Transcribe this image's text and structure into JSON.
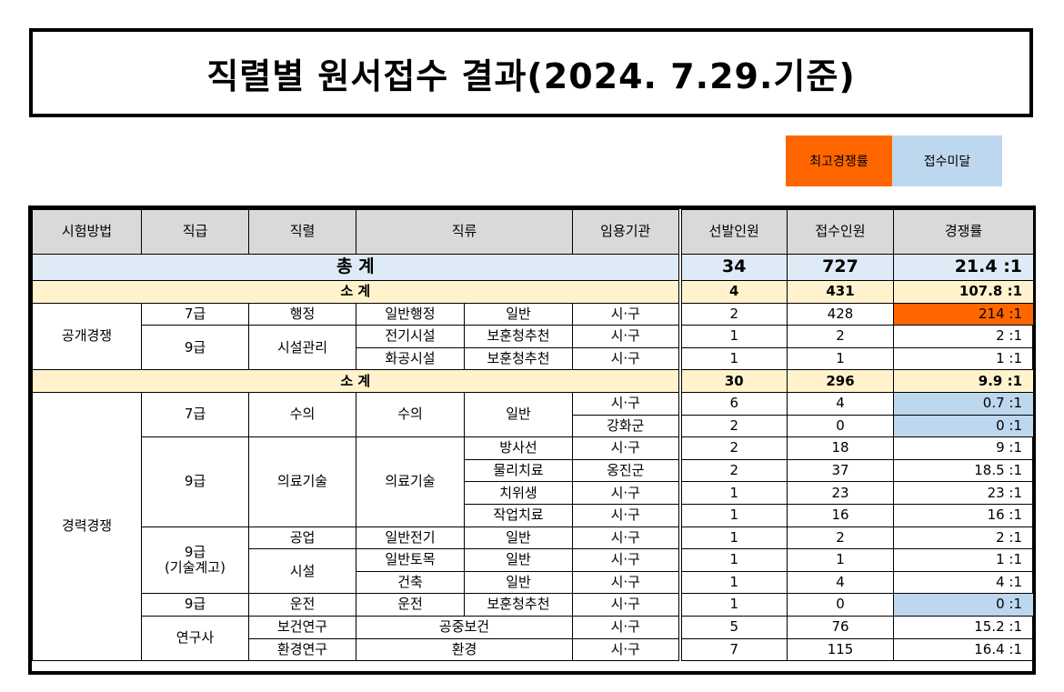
{
  "title": "직렬별 원서접수 결과(2024. 7.29.기준)",
  "legend": {
    "highest": "최고경쟁률",
    "under": "접수미달"
  },
  "colors": {
    "highest": "#ff6600",
    "under": "#bdd7ee",
    "header": "#d9d9d9",
    "total": "#deebf7",
    "subtotal": "#fff2cc"
  },
  "headers": [
    "시험방법",
    "직급",
    "직렬",
    "직류",
    "임용기관",
    "선발인원",
    "접수인원",
    "경쟁률"
  ],
  "total": {
    "label": "총 계",
    "selected": "34",
    "applied": "727",
    "ratio": "21.4 :1"
  },
  "open": {
    "method": "공개경쟁",
    "subtotal": {
      "label": "소 계",
      "selected": "4",
      "applied": "431",
      "ratio": "107.8 :1"
    },
    "rows": [
      {
        "grade": "7급",
        "series": "행정",
        "cls1": "일반행정",
        "cls2": "일반",
        "agency": "시·구",
        "selected": "2",
        "applied": "428",
        "ratio": "214 :1"
      },
      {
        "grade": "9급",
        "series": "시설관리",
        "cls1": "전기시설",
        "cls2": "보훈청추천",
        "agency": "시·구",
        "selected": "1",
        "applied": "2",
        "ratio": "2 :1"
      },
      {
        "cls1": "화공시설",
        "cls2": "보훈청추천",
        "agency": "시·구",
        "selected": "1",
        "applied": "1",
        "ratio": "1 :1"
      }
    ]
  },
  "career": {
    "method": "경력경쟁",
    "subtotal": {
      "label": "소 계",
      "selected": "30",
      "applied": "296",
      "ratio": "9.9 :1"
    },
    "rows": [
      {
        "grade": "7급",
        "series": "수의",
        "cls1": "수의",
        "cls2": "일반",
        "agency": "시·구",
        "selected": "6",
        "applied": "4",
        "ratio": "0.7 :1"
      },
      {
        "agency": "강화군",
        "selected": "2",
        "applied": "0",
        "ratio": "0 :1"
      },
      {
        "grade": "9급",
        "series": "의료기술",
        "cls1": "의료기술",
        "cls2": "방사선",
        "agency": "시·구",
        "selected": "2",
        "applied": "18",
        "ratio": "9 :1"
      },
      {
        "cls2": "물리치료",
        "agency": "옹진군",
        "selected": "2",
        "applied": "37",
        "ratio": "18.5 :1"
      },
      {
        "cls2": "치위생",
        "agency": "시·구",
        "selected": "1",
        "applied": "23",
        "ratio": "23 :1"
      },
      {
        "cls2": "작업치료",
        "agency": "시·구",
        "selected": "1",
        "applied": "16",
        "ratio": "16 :1"
      },
      {
        "grade": "9급\n(기술계고)",
        "series": "공업",
        "cls1": "일반전기",
        "cls2": "일반",
        "agency": "시·구",
        "selected": "1",
        "applied": "2",
        "ratio": "2 :1"
      },
      {
        "series": "시설",
        "cls1": "일반토목",
        "cls2": "일반",
        "agency": "시·구",
        "selected": "1",
        "applied": "1",
        "ratio": "1 :1"
      },
      {
        "cls1": "건축",
        "cls2": "일반",
        "agency": "시·구",
        "selected": "1",
        "applied": "4",
        "ratio": "4 :1"
      },
      {
        "grade": "9급",
        "series": "운전",
        "cls1": "운전",
        "cls2": "보훈청추천",
        "agency": "시·구",
        "selected": "1",
        "applied": "0",
        "ratio": "0 :1"
      },
      {
        "grade": "연구사",
        "series": "보건연구",
        "cls": "공중보건",
        "agency": "시·구",
        "selected": "5",
        "applied": "76",
        "ratio": "15.2 :1"
      },
      {
        "series": "환경연구",
        "cls": "환경",
        "agency": "시·구",
        "selected": "7",
        "applied": "115",
        "ratio": "16.4 :1"
      }
    ]
  }
}
